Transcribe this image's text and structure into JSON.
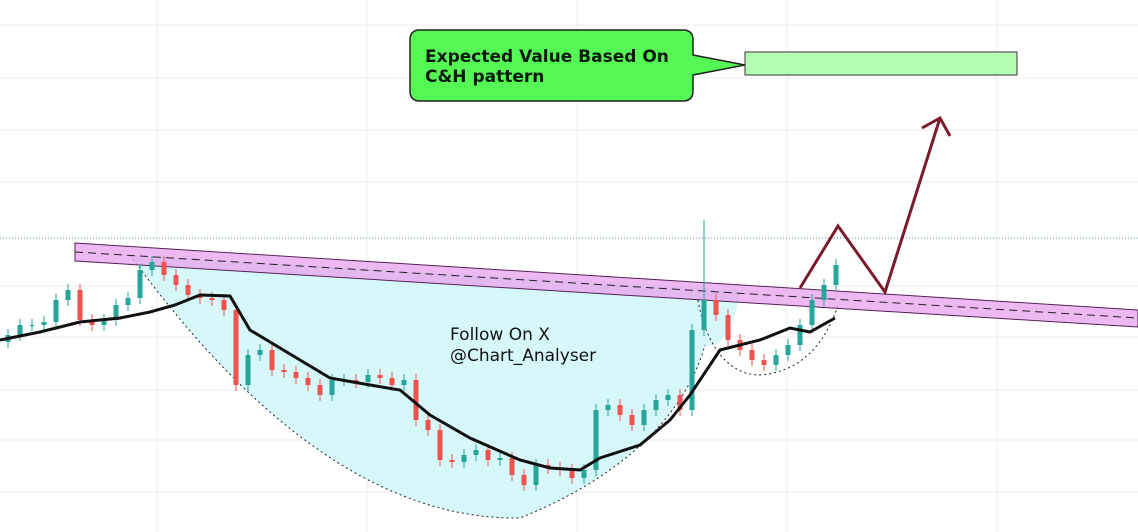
{
  "chart_data": {
    "type": "candlestick",
    "annotations": [
      "Expected Value Based On",
      "C&H pattern",
      "Follow On X",
      "@Chart_Analyser"
    ],
    "ylim": [
      0,
      532
    ],
    "up_color": "#26a69a",
    "down_color": "#ef5350",
    "open": [
      190,
      197,
      207,
      207,
      210,
      232,
      242,
      212,
      207,
      212,
      227,
      234,
      262,
      270,
      257,
      247,
      237,
      234,
      232,
      222,
      147,
      177,
      182,
      162,
      160,
      154,
      147,
      137,
      152,
      152,
      150,
      157,
      154,
      147,
      152,
      112,
      102,
      72,
      70,
      77,
      82,
      72,
      74,
      57,
      47,
      67,
      64,
      62,
      54,
      62,
      122,
      127,
      117,
      107,
      122,
      132,
      137,
      122,
      202,
      232,
      217,
      192,
      182,
      172,
      167,
      177,
      187,
      207,
      232,
      247
    ],
    "high": [
      203,
      213,
      213,
      216,
      238,
      248,
      248,
      218,
      218,
      233,
      240,
      268,
      276,
      276,
      263,
      253,
      243,
      240,
      238,
      228,
      183,
      188,
      188,
      168,
      166,
      160,
      153,
      158,
      158,
      158,
      163,
      163,
      160,
      158,
      158,
      118,
      108,
      78,
      83,
      88,
      88,
      80,
      80,
      63,
      73,
      73,
      70,
      68,
      68,
      128,
      133,
      133,
      123,
      128,
      138,
      143,
      143,
      208,
      312,
      238,
      223,
      198,
      188,
      178,
      183,
      193,
      213,
      238,
      253,
      273
    ],
    "low": [
      184,
      191,
      201,
      201,
      204,
      226,
      206,
      201,
      201,
      206,
      221,
      228,
      256,
      251,
      241,
      231,
      228,
      226,
      216,
      141,
      141,
      171,
      156,
      154,
      148,
      141,
      131,
      131,
      146,
      144,
      144,
      148,
      141,
      141,
      106,
      96,
      66,
      64,
      64,
      71,
      66,
      66,
      51,
      41,
      41,
      58,
      56,
      48,
      48,
      56,
      116,
      111,
      101,
      101,
      116,
      126,
      116,
      116,
      196,
      211,
      186,
      176,
      166,
      161,
      161,
      171,
      181,
      201,
      226,
      241
    ],
    "close": [
      197,
      207,
      207,
      210,
      232,
      242,
      212,
      207,
      212,
      227,
      234,
      262,
      270,
      257,
      247,
      237,
      234,
      232,
      222,
      147,
      177,
      182,
      162,
      160,
      154,
      147,
      137,
      152,
      152,
      150,
      157,
      154,
      147,
      152,
      112,
      102,
      72,
      70,
      77,
      82,
      72,
      74,
      57,
      47,
      67,
      64,
      62,
      54,
      62,
      122,
      127,
      117,
      107,
      122,
      132,
      137,
      122,
      202,
      232,
      217,
      192,
      182,
      172,
      167,
      177,
      187,
      207,
      232,
      247,
      267
    ]
  }
}
